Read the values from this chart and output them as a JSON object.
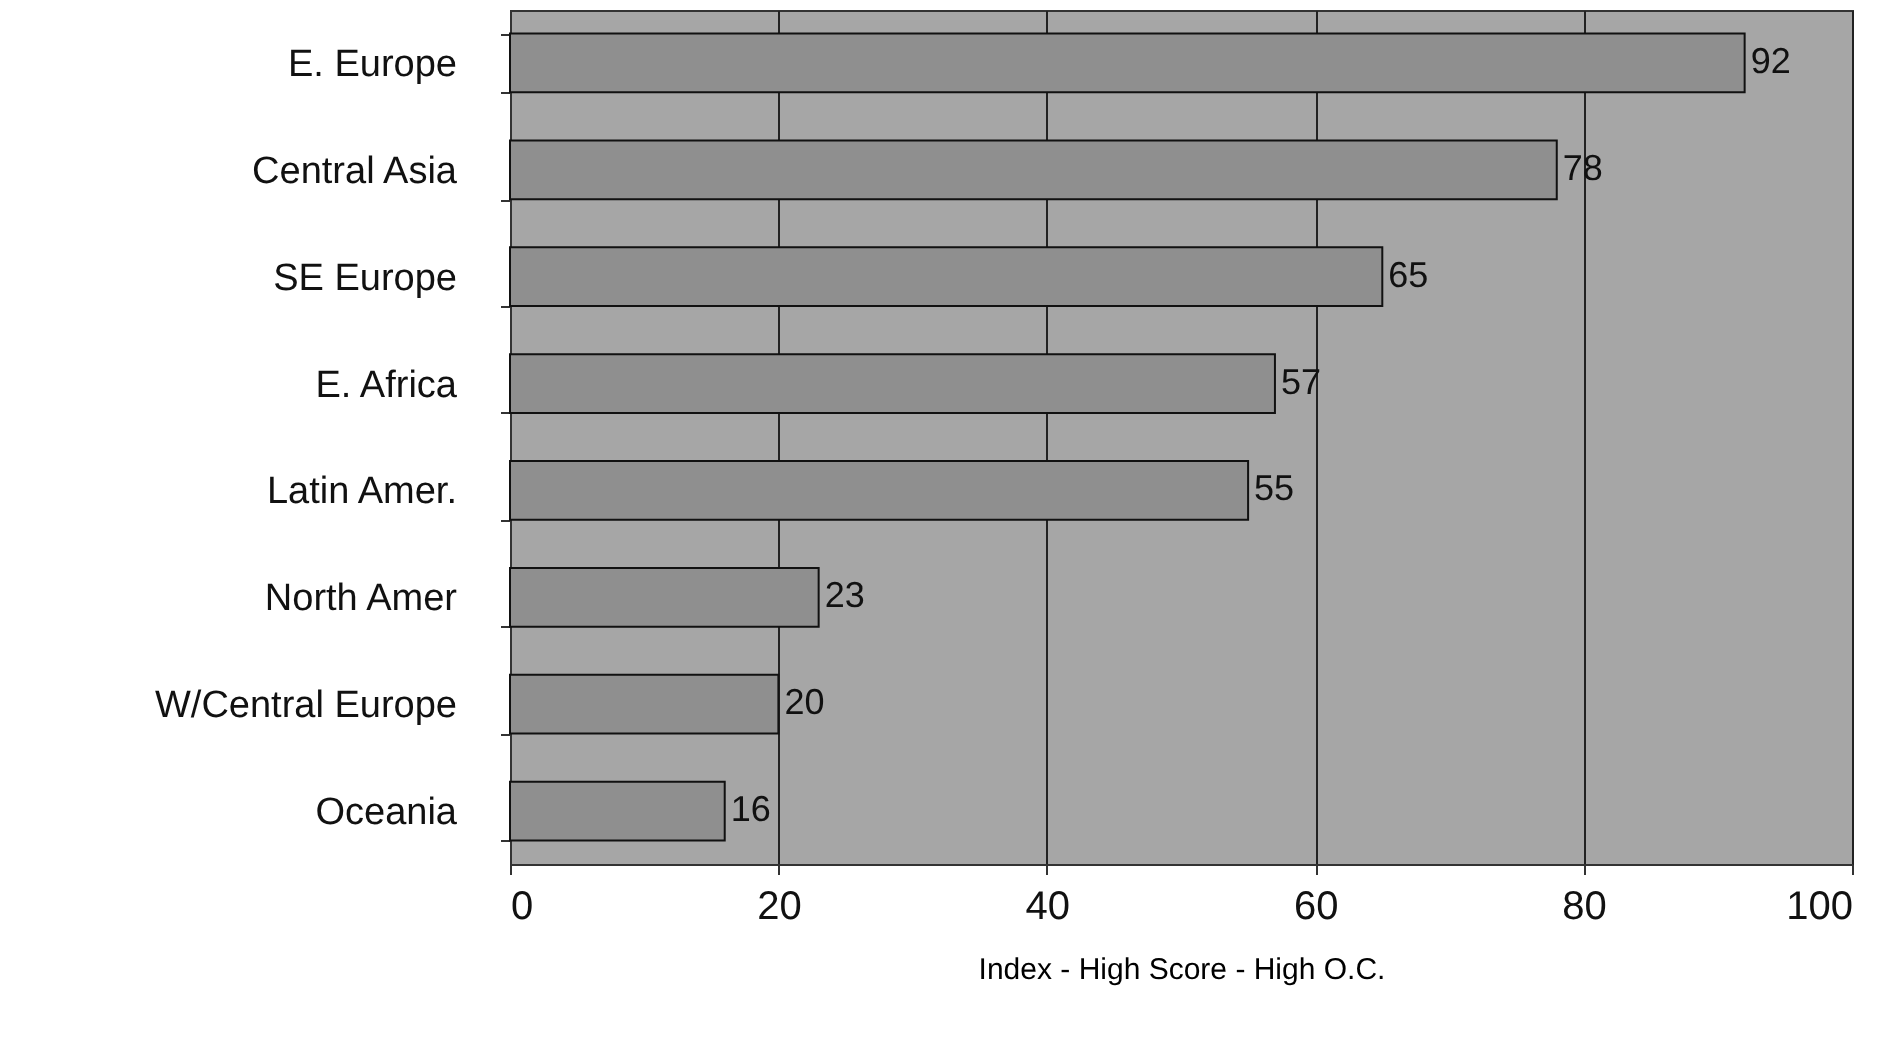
{
  "chart_data": {
    "type": "bar",
    "orientation": "horizontal",
    "xlabel": "Index - High Score - High O.C.",
    "categories": [
      "E. Europe",
      "Central Asia",
      "SE Europe",
      "E. Africa",
      "Latin Amer.",
      "North Amer",
      "W/Central Europe",
      "Oceania"
    ],
    "values": [
      92,
      78,
      65,
      57,
      55,
      23,
      20,
      16
    ],
    "color": "#8f8f8f",
    "xlim": [
      0,
      100
    ],
    "xticks": [
      0,
      20,
      40,
      60,
      80,
      100
    ],
    "grid": "x",
    "data_labels": true
  }
}
